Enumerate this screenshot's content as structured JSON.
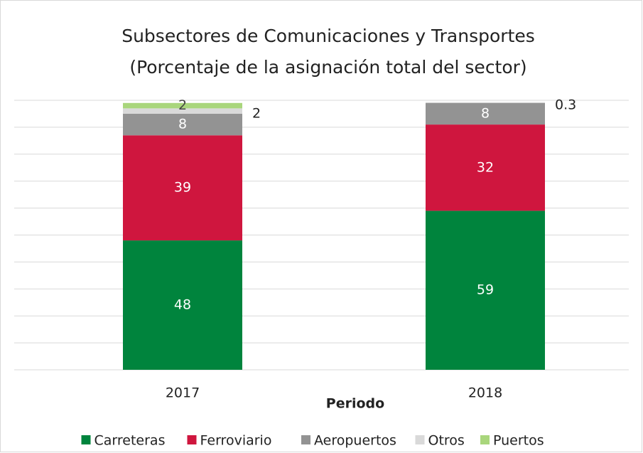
{
  "chart_data": {
    "type": "stacked_bar",
    "title": "Subsectores de Comunicaciones y Transportes",
    "subtitle": "(Porcentaje de la asignación total del sector)",
    "x_label": "Periodo",
    "categories": [
      "2017",
      "2018"
    ],
    "series": [
      {
        "name": "Carreteras",
        "color": "#00843d",
        "values": [
          48,
          59
        ]
      },
      {
        "name": "Ferroviario",
        "color": "#cf163e",
        "values": [
          39,
          32
        ]
      },
      {
        "name": "Aeropuertos",
        "color": "#939393",
        "values": [
          8,
          8
        ]
      },
      {
        "name": "Otros",
        "color": "#d9d9d9",
        "values": [
          2,
          0.3
        ]
      },
      {
        "name": "Puertos",
        "color": "#a9d67c",
        "values": [
          2,
          null
        ]
      }
    ],
    "ylim": [
      0,
      100
    ],
    "yticks": [
      0,
      10,
      20,
      30,
      40,
      50,
      60,
      70,
      80,
      90,
      100
    ],
    "grid": true,
    "legend": "bottom"
  }
}
